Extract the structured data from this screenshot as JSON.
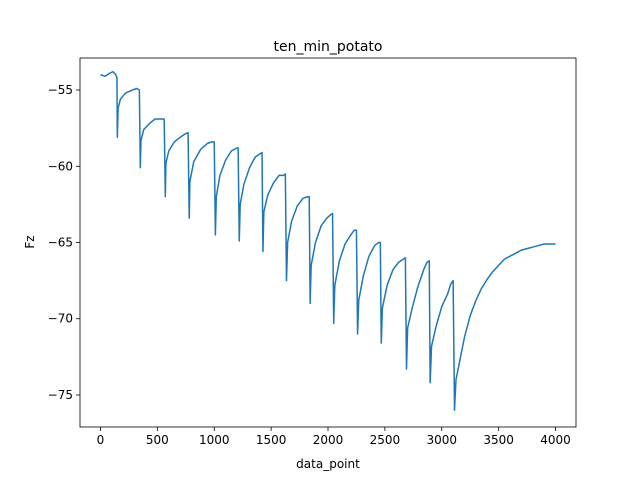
{
  "chart_data": {
    "type": "line",
    "title": "ten_min_potato",
    "xlabel": "data_point",
    "ylabel": "Fz",
    "xlim": [
      -180,
      4180
    ],
    "ylim": [
      -77.1,
      -52.9
    ],
    "xticks": [
      0,
      500,
      1000,
      1500,
      2000,
      2500,
      3000,
      3500,
      4000
    ],
    "yticks": [
      -55,
      -60,
      -65,
      -70,
      -75
    ],
    "grid": false,
    "series": [
      {
        "color": "#1f77b4",
        "points": [
          [
            0,
            -54.0
          ],
          [
            40,
            -54.1
          ],
          [
            80,
            -53.9
          ],
          [
            110,
            -53.8
          ],
          [
            135,
            -54.0
          ],
          [
            145,
            -54.2
          ],
          [
            148,
            -58.1
          ],
          [
            155,
            -56.2
          ],
          [
            175,
            -55.6
          ],
          [
            220,
            -55.2
          ],
          [
            280,
            -55.0
          ],
          [
            320,
            -54.9
          ],
          [
            342,
            -55.0
          ],
          [
            350,
            -60.1
          ],
          [
            356,
            -58.3
          ],
          [
            380,
            -57.6
          ],
          [
            430,
            -57.2
          ],
          [
            480,
            -56.9
          ],
          [
            525,
            -56.9
          ],
          [
            560,
            -56.9
          ],
          [
            570,
            -62.0
          ],
          [
            575,
            -59.8
          ],
          [
            600,
            -59.0
          ],
          [
            650,
            -58.4
          ],
          [
            700,
            -58.1
          ],
          [
            740,
            -57.9
          ],
          [
            770,
            -57.8
          ],
          [
            780,
            -63.4
          ],
          [
            786,
            -61.0
          ],
          [
            820,
            -59.7
          ],
          [
            880,
            -58.9
          ],
          [
            940,
            -58.5
          ],
          [
            980,
            -58.4
          ],
          [
            1000,
            -58.4
          ],
          [
            1010,
            -64.5
          ],
          [
            1018,
            -62.0
          ],
          [
            1050,
            -60.6
          ],
          [
            1100,
            -59.6
          ],
          [
            1150,
            -59.0
          ],
          [
            1200,
            -58.8
          ],
          [
            1210,
            -58.8
          ],
          [
            1220,
            -64.9
          ],
          [
            1228,
            -62.5
          ],
          [
            1260,
            -61.2
          ],
          [
            1310,
            -60.1
          ],
          [
            1360,
            -59.4
          ],
          [
            1400,
            -59.2
          ],
          [
            1420,
            -59.1
          ],
          [
            1428,
            -65.6
          ],
          [
            1436,
            -63.0
          ],
          [
            1470,
            -61.9
          ],
          [
            1520,
            -61.1
          ],
          [
            1570,
            -60.6
          ],
          [
            1610,
            -60.6
          ],
          [
            1625,
            -60.5
          ],
          [
            1635,
            -67.5
          ],
          [
            1645,
            -65.0
          ],
          [
            1680,
            -63.6
          ],
          [
            1730,
            -62.6
          ],
          [
            1780,
            -62.1
          ],
          [
            1820,
            -62.0
          ],
          [
            1835,
            -62.0
          ],
          [
            1843,
            -69.0
          ],
          [
            1852,
            -66.5
          ],
          [
            1890,
            -65.0
          ],
          [
            1940,
            -63.9
          ],
          [
            1990,
            -63.4
          ],
          [
            2020,
            -63.2
          ],
          [
            2040,
            -63.1
          ],
          [
            2050,
            -70.3
          ],
          [
            2060,
            -67.8
          ],
          [
            2100,
            -66.2
          ],
          [
            2150,
            -65.1
          ],
          [
            2200,
            -64.5
          ],
          [
            2230,
            -64.2
          ],
          [
            2250,
            -64.2
          ],
          [
            2260,
            -71.0
          ],
          [
            2270,
            -68.8
          ],
          [
            2310,
            -67.2
          ],
          [
            2360,
            -65.9
          ],
          [
            2410,
            -65.2
          ],
          [
            2445,
            -65.0
          ],
          [
            2460,
            -65.0
          ],
          [
            2468,
            -71.6
          ],
          [
            2478,
            -69.3
          ],
          [
            2520,
            -67.8
          ],
          [
            2570,
            -66.8
          ],
          [
            2620,
            -66.3
          ],
          [
            2660,
            -66.1
          ],
          [
            2680,
            -66.0
          ],
          [
            2690,
            -73.3
          ],
          [
            2700,
            -70.6
          ],
          [
            2740,
            -69.3
          ],
          [
            2790,
            -67.9
          ],
          [
            2840,
            -66.8
          ],
          [
            2870,
            -66.3
          ],
          [
            2890,
            -66.2
          ],
          [
            2898,
            -74.2
          ],
          [
            2910,
            -71.8
          ],
          [
            2950,
            -70.5
          ],
          [
            3000,
            -69.2
          ],
          [
            3050,
            -68.4
          ],
          [
            3080,
            -67.7
          ],
          [
            3100,
            -67.5
          ],
          [
            3112,
            -76.0
          ],
          [
            3125,
            -74.0
          ],
          [
            3160,
            -72.7
          ],
          [
            3200,
            -71.2
          ],
          [
            3250,
            -69.8
          ],
          [
            3300,
            -68.8
          ],
          [
            3350,
            -68.0
          ],
          [
            3400,
            -67.4
          ],
          [
            3450,
            -66.9
          ],
          [
            3500,
            -66.5
          ],
          [
            3550,
            -66.1
          ],
          [
            3600,
            -65.9
          ],
          [
            3650,
            -65.7
          ],
          [
            3700,
            -65.5
          ],
          [
            3750,
            -65.4
          ],
          [
            3800,
            -65.3
          ],
          [
            3850,
            -65.2
          ],
          [
            3900,
            -65.1
          ],
          [
            3950,
            -65.1
          ],
          [
            4000,
            -65.1
          ]
        ]
      }
    ]
  }
}
